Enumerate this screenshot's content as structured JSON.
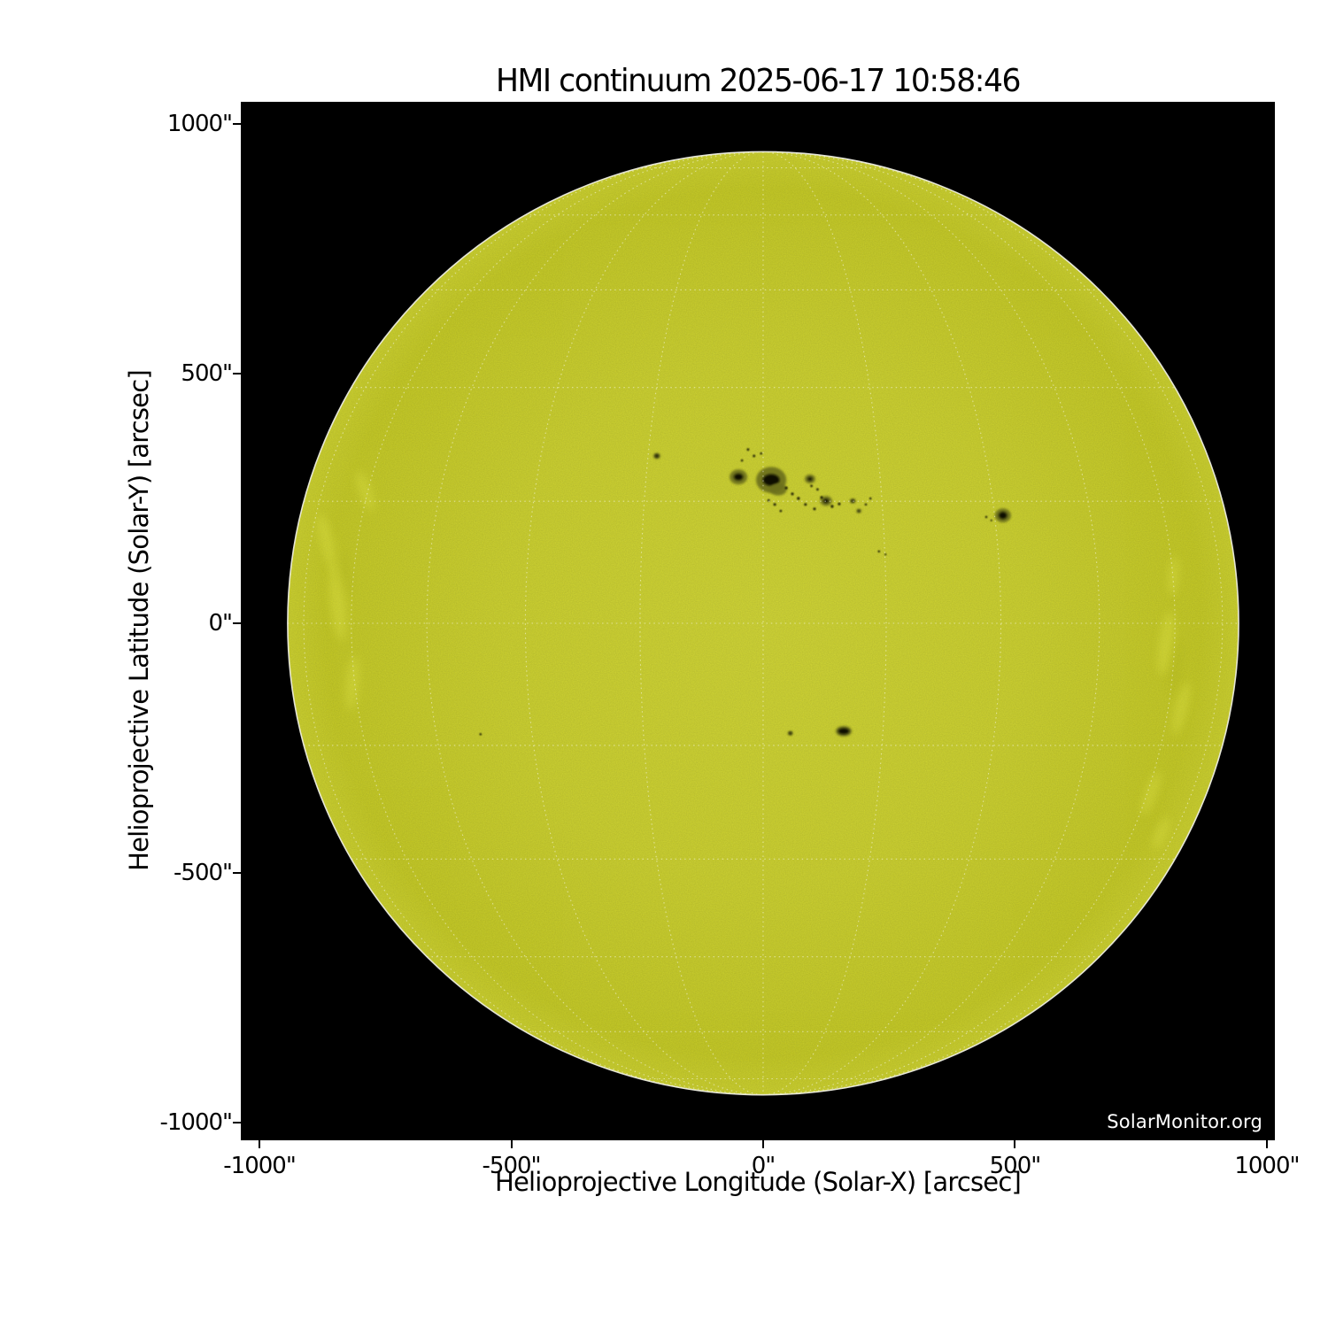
{
  "chart_data": {
    "type": "heatmap",
    "subtype": "solar-disk-image",
    "title": "HMI continuum 2025-06-17 10:58:46",
    "xlabel": "Helioprojective Longitude (Solar-X) [arcsec]",
    "ylabel": "Helioprojective Latitude (Solar-Y) [arcsec]",
    "watermark": "SolarMonitor.org",
    "xlim": [
      -1037,
      1016
    ],
    "ylim": [
      -1035,
      1044
    ],
    "x_ticks": [
      {
        "value": -1000,
        "label": "-1000\""
      },
      {
        "value": -500,
        "label": "-500\""
      },
      {
        "value": 0,
        "label": "0\""
      },
      {
        "value": 500,
        "label": "500\""
      },
      {
        "value": 1000,
        "label": "1000\""
      }
    ],
    "y_ticks": [
      {
        "value": 1000,
        "label": "1000\""
      },
      {
        "value": 500,
        "label": "500\""
      },
      {
        "value": 0,
        "label": "0\""
      },
      {
        "value": -500,
        "label": "-500\""
      },
      {
        "value": -1000,
        "label": "-1000\""
      }
    ],
    "grid": {
      "spacing_deg": 15,
      "style": "dotted",
      "visible": true
    },
    "sun": {
      "center": [
        0,
        0
      ],
      "radius_arcsec": 944
    },
    "sunspots": [
      {
        "x": -49,
        "y": 293,
        "pw": 35,
        "ph": 30,
        "uw": 18,
        "uh": 13
      },
      {
        "x": 16,
        "y": 287,
        "pw": 60,
        "ph": 52,
        "uw": 33,
        "uh": 23
      },
      {
        "x": 30,
        "y": 268,
        "pw": 34,
        "ph": 24,
        "uw": 0,
        "uh": 0
      },
      {
        "x": 93,
        "y": 289,
        "pw": 21,
        "ph": 18,
        "uw": 9,
        "uh": 7
      },
      {
        "x": -211,
        "y": 335,
        "pw": 14,
        "ph": 12,
        "uw": 7,
        "uh": 6
      },
      {
        "x": 125,
        "y": 245,
        "pw": 24,
        "ph": 20,
        "uw": 10,
        "uh": 8
      },
      {
        "x": 178,
        "y": 245,
        "pw": 12,
        "ph": 10,
        "uw": 6,
        "uh": 5
      },
      {
        "x": 190,
        "y": 225,
        "pw": 10,
        "ph": 9,
        "uw": 5,
        "uh": 4
      },
      {
        "x": 476,
        "y": 216,
        "pw": 32,
        "ph": 28,
        "uw": 16,
        "uh": 14
      },
      {
        "x": 160,
        "y": -216,
        "pw": 32,
        "ph": 21,
        "uw": 22,
        "uh": 12
      },
      {
        "x": 54,
        "y": -220,
        "pw": 10,
        "ph": 9,
        "uw": 6,
        "uh": 5
      }
    ],
    "specks": [
      [
        -30,
        348,
        2.6
      ],
      [
        -18,
        335,
        2.6
      ],
      [
        -4,
        340,
        2.2
      ],
      [
        -42,
        326,
        2.2
      ],
      [
        46,
        271,
        2.8
      ],
      [
        58,
        259,
        2.8
      ],
      [
        70,
        250,
        3.0
      ],
      [
        84,
        238,
        2.8
      ],
      [
        102,
        229,
        2.8
      ],
      [
        116,
        252,
        2.8
      ],
      [
        137,
        234,
        3.0
      ],
      [
        151,
        239,
        2.8
      ],
      [
        204,
        238,
        2.3
      ],
      [
        213,
        250,
        2.3
      ],
      [
        23,
        238,
        2.8
      ],
      [
        11,
        246,
        2.4
      ],
      [
        35,
        225,
        2.4
      ],
      [
        96,
        275,
        2.4
      ],
      [
        108,
        268,
        2.4
      ],
      [
        230,
        144,
        2.3
      ],
      [
        243,
        138,
        2.0
      ],
      [
        443,
        213,
        2.3
      ],
      [
        453,
        206,
        2.0
      ],
      [
        -561,
        -222,
        2.2
      ]
    ],
    "faculae": [
      {
        "x": -865,
        "y": 160,
        "w": 26,
        "h": 120,
        "rot": -14,
        "kind": "light"
      },
      {
        "x": -845,
        "y": 40,
        "w": 30,
        "h": 150,
        "rot": -6,
        "kind": "light"
      },
      {
        "x": -815,
        "y": -120,
        "w": 24,
        "h": 110,
        "rot": 5,
        "kind": "light"
      },
      {
        "x": -790,
        "y": 265,
        "w": 22,
        "h": 85,
        "rot": -20,
        "kind": "light"
      },
      {
        "x": 800,
        "y": -40,
        "w": 28,
        "h": 130,
        "rot": 8,
        "kind": "light"
      },
      {
        "x": 830,
        "y": -170,
        "w": 24,
        "h": 110,
        "rot": 14,
        "kind": "light"
      },
      {
        "x": 770,
        "y": -340,
        "w": 22,
        "h": 95,
        "rot": 20,
        "kind": "light"
      },
      {
        "x": 815,
        "y": 95,
        "w": 20,
        "h": 80,
        "rot": 4,
        "kind": "light"
      },
      {
        "x": 790,
        "y": -420,
        "w": 20,
        "h": 70,
        "rot": 24,
        "kind": "light"
      },
      {
        "x": 820,
        "y": -90,
        "w": 18,
        "h": 100,
        "rot": 10,
        "kind": "dark"
      },
      {
        "x": -830,
        "y": 100,
        "w": 16,
        "h": 90,
        "rot": -10,
        "kind": "dark"
      }
    ]
  },
  "colors": {
    "page_bg": "#ffffff",
    "plot_bg": "#000000",
    "disk_center": "#cfd42e",
    "disk_mid": "#cbd028",
    "disk_edge": "#c4c91e",
    "limb_line": "#ededdf",
    "grid_line": "#ffffff",
    "penumbra": "#6c701c",
    "umbra": "#0f0f06",
    "facula_light": "#e9ee52",
    "facula_dark": "#a9ae1c",
    "text": "#000000",
    "watermark_text": "#ffffff"
  }
}
